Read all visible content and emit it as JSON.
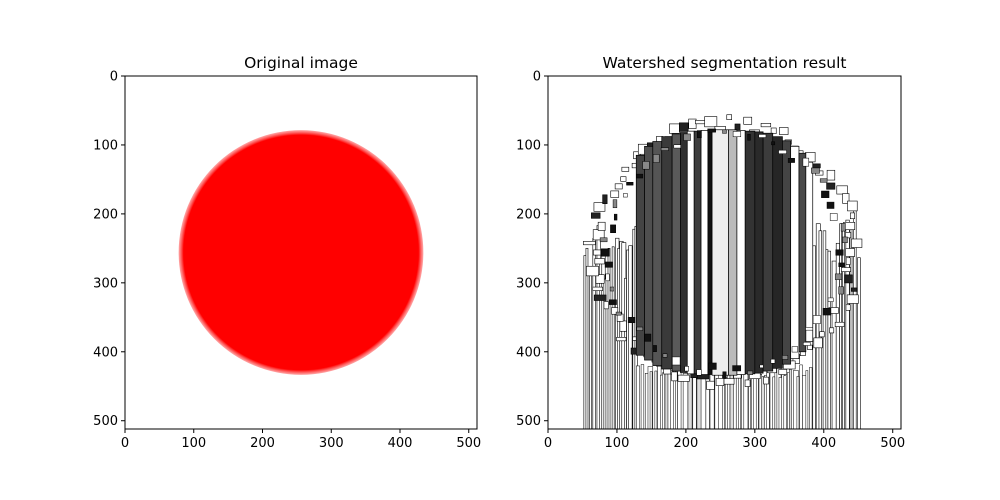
{
  "chart_data": [
    {
      "type": "image",
      "title": "Original image",
      "x_ticks": [
        "0",
        "100",
        "200",
        "300",
        "400",
        "500"
      ],
      "y_ticks": [
        "0",
        "100",
        "200",
        "300",
        "400",
        "500"
      ],
      "xlim": [
        0,
        512
      ],
      "ylim": [
        512,
        0
      ],
      "circle": {
        "cx": 256,
        "cy": 256,
        "r": 178,
        "color": "#ff0000"
      },
      "background": "#ffffff"
    },
    {
      "type": "image",
      "title": "Watershed segmentation result",
      "x_ticks": [
        "0",
        "100",
        "200",
        "300",
        "400",
        "500"
      ],
      "y_ticks": [
        "0",
        "100",
        "200",
        "300",
        "400",
        "500"
      ],
      "xlim": [
        0,
        512
      ],
      "ylim": [
        512,
        0
      ],
      "colormap": "gray",
      "bands": [
        {
          "x0": 128,
          "x1": 140,
          "y0": 115,
          "y1": 405,
          "shade": "#444444"
        },
        {
          "x0": 140,
          "x1": 152,
          "y0": 102,
          "y1": 412,
          "shade": "#4f4f4f"
        },
        {
          "x0": 152,
          "x1": 165,
          "y0": 95,
          "y1": 420,
          "shade": "#555555"
        },
        {
          "x0": 165,
          "x1": 180,
          "y0": 88,
          "y1": 425,
          "shade": "#3a3a3a"
        },
        {
          "x0": 180,
          "x1": 192,
          "y0": 84,
          "y1": 428,
          "shade": "#5a5a5a"
        },
        {
          "x0": 192,
          "x1": 202,
          "y0": 82,
          "y1": 430,
          "shade": "#2f2f2f"
        },
        {
          "x0": 202,
          "x1": 212,
          "y0": 80,
          "y1": 432,
          "shade": "#ffffff"
        },
        {
          "x0": 212,
          "x1": 222,
          "y0": 80,
          "y1": 432,
          "shade": "#3d3d3d"
        },
        {
          "x0": 222,
          "x1": 232,
          "y0": 79,
          "y1": 433,
          "shade": "#ffffff"
        },
        {
          "x0": 232,
          "x1": 238,
          "y0": 79,
          "y1": 433,
          "shade": "#111111"
        },
        {
          "x0": 238,
          "x1": 262,
          "y0": 78,
          "y1": 434,
          "shade": "#eeeeee"
        },
        {
          "x0": 262,
          "x1": 274,
          "y0": 78,
          "y1": 434,
          "shade": "#bbbbbb"
        },
        {
          "x0": 274,
          "x1": 286,
          "y0": 79,
          "y1": 433,
          "shade": "#ffffff"
        },
        {
          "x0": 286,
          "x1": 300,
          "y0": 80,
          "y1": 432,
          "shade": "#333333"
        },
        {
          "x0": 300,
          "x1": 312,
          "y0": 81,
          "y1": 431,
          "shade": "#2a2a2a"
        },
        {
          "x0": 312,
          "x1": 326,
          "y0": 83,
          "y1": 428,
          "shade": "#3c3c3c"
        },
        {
          "x0": 326,
          "x1": 340,
          "y0": 88,
          "y1": 424,
          "shade": "#262626"
        },
        {
          "x0": 340,
          "x1": 352,
          "y0": 94,
          "y1": 418,
          "shade": "#444444"
        },
        {
          "x0": 352,
          "x1": 364,
          "y0": 102,
          "y1": 410,
          "shade": "#ffffff"
        },
        {
          "x0": 364,
          "x1": 374,
          "y0": 112,
          "y1": 400,
          "shade": "#4a4a4a"
        },
        {
          "x0": 374,
          "x1": 384,
          "y0": 125,
          "y1": 385,
          "shade": "#ffffff"
        }
      ],
      "edge_strips": [
        {
          "x0": 52,
          "x1": 128,
          "y_top": 210
        },
        {
          "x0": 384,
          "x1": 450,
          "y_top": 185
        }
      ],
      "bottom_strips": {
        "x0": 128,
        "x1": 384
      }
    }
  ]
}
